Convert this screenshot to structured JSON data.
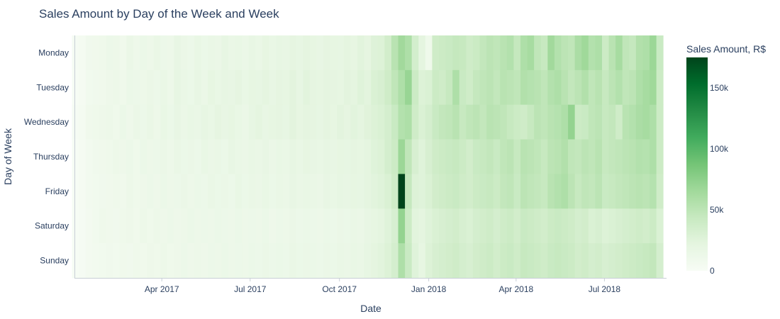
{
  "chart_data": {
    "type": "heatmap",
    "title": "Sales Amount by Day of the Week and Week",
    "xlabel": "Date",
    "ylabel": "Day of Week",
    "colorbar_title": "Sales Amount, R$",
    "colorscale": "Greens",
    "colorscale_stops": [
      "#f7fcf5",
      "#e5f5e0",
      "#c7e9c0",
      "#a1d99b",
      "#74c476",
      "#41ab5d",
      "#238b45",
      "#006d2c",
      "#00441b"
    ],
    "color_range": [
      0,
      175000
    ],
    "colorbar_ticks": [
      {
        "value": 0,
        "label": "0"
      },
      {
        "value": 50000,
        "label": "50k"
      },
      {
        "value": 100000,
        "label": "100k"
      },
      {
        "value": 150000,
        "label": "150k"
      }
    ],
    "y_categories": [
      "Monday",
      "Tuesday",
      "Wednesday",
      "Thursday",
      "Friday",
      "Saturday",
      "Sunday"
    ],
    "x_range": [
      "2017-01-01",
      "2018-09-03"
    ],
    "x_ticks": [
      {
        "value": "2017-04-01",
        "label": "Apr 2017"
      },
      {
        "value": "2017-07-01",
        "label": "Jul 2017"
      },
      {
        "value": "2017-10-01",
        "label": "Oct 2017"
      },
      {
        "value": "2018-01-01",
        "label": "Jan 2018"
      },
      {
        "value": "2018-04-01",
        "label": "Apr 2018"
      },
      {
        "value": "2018-07-01",
        "label": "Jul 2018"
      }
    ],
    "weeks": [
      "2017-01-02",
      "2017-01-09",
      "2017-01-16",
      "2017-01-23",
      "2017-01-30",
      "2017-02-06",
      "2017-02-13",
      "2017-02-20",
      "2017-02-27",
      "2017-03-06",
      "2017-03-13",
      "2017-03-20",
      "2017-03-27",
      "2017-04-03",
      "2017-04-10",
      "2017-04-17",
      "2017-04-24",
      "2017-05-01",
      "2017-05-08",
      "2017-05-15",
      "2017-05-22",
      "2017-05-29",
      "2017-06-05",
      "2017-06-12",
      "2017-06-19",
      "2017-06-26",
      "2017-07-03",
      "2017-07-10",
      "2017-07-17",
      "2017-07-24",
      "2017-07-31",
      "2017-08-07",
      "2017-08-14",
      "2017-08-21",
      "2017-08-28",
      "2017-09-04",
      "2017-09-11",
      "2017-09-18",
      "2017-09-25",
      "2017-10-02",
      "2017-10-09",
      "2017-10-16",
      "2017-10-23",
      "2017-10-30",
      "2017-11-06",
      "2017-11-13",
      "2017-11-20",
      "2017-11-27",
      "2017-12-04",
      "2017-12-11",
      "2017-12-18",
      "2017-12-25",
      "2018-01-01",
      "2018-01-08",
      "2018-01-15",
      "2018-01-22",
      "2018-01-29",
      "2018-02-05",
      "2018-02-12",
      "2018-02-19",
      "2018-02-26",
      "2018-03-05",
      "2018-03-12",
      "2018-03-19",
      "2018-03-26",
      "2018-04-02",
      "2018-04-09",
      "2018-04-16",
      "2018-04-23",
      "2018-04-30",
      "2018-05-07",
      "2018-05-14",
      "2018-05-21",
      "2018-05-28",
      "2018-06-04",
      "2018-06-11",
      "2018-06-18",
      "2018-06-25",
      "2018-07-02",
      "2018-07-09",
      "2018-07-16",
      "2018-07-23",
      "2018-07-30",
      "2018-08-06",
      "2018-08-13",
      "2018-08-20",
      "2018-08-27"
    ],
    "z": [
      [
        2000,
        4000,
        8000,
        9000,
        10000,
        13000,
        12000,
        9000,
        15000,
        11000,
        14000,
        12000,
        16000,
        13000,
        12000,
        18000,
        15000,
        13000,
        17000,
        14000,
        16000,
        15000,
        19000,
        16000,
        17000,
        15000,
        18000,
        16000,
        20000,
        17000,
        19000,
        18000,
        21000,
        19000,
        22000,
        20000,
        18000,
        21000,
        20000,
        19000,
        22000,
        20000,
        24000,
        21000,
        27000,
        28000,
        36000,
        52000,
        65000,
        58000,
        35000,
        22000,
        10000,
        38000,
        40000,
        42000,
        45000,
        44000,
        38000,
        41000,
        46000,
        50000,
        48000,
        52000,
        55000,
        45000,
        58000,
        62000,
        48000,
        44000,
        65000,
        55000,
        50000,
        48000,
        60000,
        66000,
        55000,
        58000,
        40000,
        52000,
        62000,
        48000,
        45000,
        56000,
        58000,
        68000,
        42000
      ],
      [
        1000,
        3000,
        7000,
        8000,
        9000,
        11000,
        12000,
        10000,
        14000,
        13000,
        12000,
        15000,
        13000,
        16000,
        12000,
        19000,
        16000,
        14000,
        18000,
        15000,
        20000,
        17000,
        19000,
        18000,
        21000,
        17000,
        20000,
        19000,
        22000,
        18000,
        21000,
        20000,
        23000,
        19000,
        24000,
        21000,
        20000,
        22000,
        21000,
        20000,
        23000,
        22000,
        26000,
        23000,
        30000,
        32000,
        38000,
        48000,
        58000,
        70000,
        40000,
        28000,
        30000,
        40000,
        38000,
        44000,
        58000,
        42000,
        38000,
        45000,
        48000,
        50000,
        46000,
        52000,
        50000,
        48000,
        56000,
        54000,
        52000,
        48000,
        55000,
        58000,
        52000,
        46000,
        50000,
        56000,
        48000,
        52000,
        44000,
        50000,
        55000,
        48000,
        50000,
        58000,
        62000,
        66000,
        40000
      ],
      [
        2000,
        4000,
        9000,
        10000,
        11000,
        12000,
        10000,
        14000,
        11000,
        15000,
        13000,
        16000,
        12000,
        17000,
        14000,
        18000,
        15000,
        17000,
        16000,
        19000,
        17000,
        21000,
        18000,
        20000,
        17000,
        15000,
        19000,
        22000,
        18000,
        20000,
        21000,
        19000,
        23000,
        20000,
        22000,
        21000,
        19000,
        22000,
        20000,
        23000,
        21000,
        24000,
        22000,
        25000,
        28000,
        30000,
        34000,
        42000,
        55000,
        58000,
        38000,
        30000,
        34000,
        42000,
        46000,
        48000,
        52000,
        44000,
        48000,
        50000,
        46000,
        52000,
        50000,
        48000,
        44000,
        40000,
        38000,
        44000,
        50000,
        48000,
        52000,
        54000,
        58000,
        72000,
        40000,
        42000,
        48000,
        50000,
        44000,
        46000,
        38000,
        52000,
        55000,
        60000,
        62000,
        58000,
        40000
      ],
      [
        1000,
        3000,
        6000,
        8000,
        9000,
        10000,
        12000,
        11000,
        13000,
        10000,
        14000,
        12000,
        13000,
        15000,
        12000,
        16000,
        14000,
        15000,
        13000,
        17000,
        15000,
        16000,
        14000,
        18000,
        16000,
        15000,
        17000,
        16000,
        18000,
        15000,
        17000,
        16000,
        19000,
        17000,
        20000,
        18000,
        17000,
        19000,
        18000,
        20000,
        19000,
        21000,
        20000,
        22000,
        26000,
        28000,
        34000,
        40000,
        68000,
        48000,
        32000,
        26000,
        32000,
        38000,
        40000,
        42000,
        44000,
        40000,
        36000,
        42000,
        44000,
        46000,
        42000,
        48000,
        50000,
        44000,
        52000,
        50000,
        48000,
        44000,
        50000,
        52000,
        56000,
        48000,
        46000,
        50000,
        48000,
        52000,
        44000,
        46000,
        48000,
        50000,
        52000,
        55000,
        54000,
        58000,
        40000
      ],
      [
        1000,
        3000,
        6000,
        7000,
        8000,
        9000,
        10000,
        9000,
        12000,
        10000,
        11000,
        13000,
        11000,
        14000,
        12000,
        13000,
        15000,
        12000,
        14000,
        13000,
        16000,
        14000,
        15000,
        13000,
        17000,
        14000,
        16000,
        15000,
        17000,
        14000,
        16000,
        15000,
        18000,
        16000,
        17000,
        16000,
        15000,
        18000,
        17000,
        19000,
        18000,
        20000,
        19000,
        22000,
        24000,
        26000,
        30000,
        38000,
        175000,
        45000,
        28000,
        26000,
        30000,
        36000,
        38000,
        40000,
        42000,
        38000,
        36000,
        40000,
        42000,
        44000,
        40000,
        46000,
        48000,
        42000,
        50000,
        48000,
        46000,
        44000,
        52000,
        55000,
        58000,
        50000,
        44000,
        48000,
        46000,
        50000,
        42000,
        44000,
        46000,
        48000,
        50000,
        52000,
        50000,
        54000,
        38000
      ],
      [
        1000,
        2000,
        5000,
        7000,
        10000,
        9000,
        8000,
        10000,
        11000,
        9000,
        12000,
        10000,
        12000,
        11000,
        13000,
        11000,
        12000,
        14000,
        12000,
        13000,
        12000,
        14000,
        13000,
        12000,
        14000,
        12000,
        13000,
        12000,
        14000,
        11000,
        13000,
        12000,
        15000,
        13000,
        14000,
        13000,
        12000,
        14000,
        13000,
        15000,
        14000,
        16000,
        15000,
        18000,
        20000,
        22000,
        26000,
        32000,
        72000,
        40000,
        24000,
        22000,
        26000,
        30000,
        32000,
        34000,
        36000,
        32000,
        30000,
        34000,
        36000,
        38000,
        34000,
        38000,
        40000,
        36000,
        42000,
        40000,
        38000,
        36000,
        40000,
        42000,
        40000,
        38000,
        34000,
        36000,
        30000,
        32000,
        28000,
        30000,
        32000,
        34000,
        36000,
        38000,
        36000,
        40000,
        30000
      ],
      [
        1000,
        2000,
        5000,
        6000,
        7000,
        8000,
        7000,
        9000,
        8000,
        10000,
        9000,
        11000,
        10000,
        12000,
        10000,
        11000,
        13000,
        11000,
        12000,
        11000,
        13000,
        12000,
        14000,
        12000,
        13000,
        12000,
        14000,
        13000,
        15000,
        13000,
        14000,
        13000,
        16000,
        14000,
        15000,
        14000,
        13000,
        15000,
        14000,
        16000,
        15000,
        17000,
        16000,
        19000,
        22000,
        24000,
        28000,
        34000,
        58000,
        42000,
        26000,
        20000,
        28000,
        32000,
        34000,
        36000,
        38000,
        34000,
        32000,
        36000,
        38000,
        40000,
        36000,
        40000,
        42000,
        38000,
        44000,
        42000,
        40000,
        38000,
        42000,
        44000,
        42000,
        40000,
        36000,
        38000,
        34000,
        36000,
        32000,
        34000,
        36000,
        38000,
        40000,
        42000,
        44000,
        46000,
        34000
      ]
    ]
  }
}
